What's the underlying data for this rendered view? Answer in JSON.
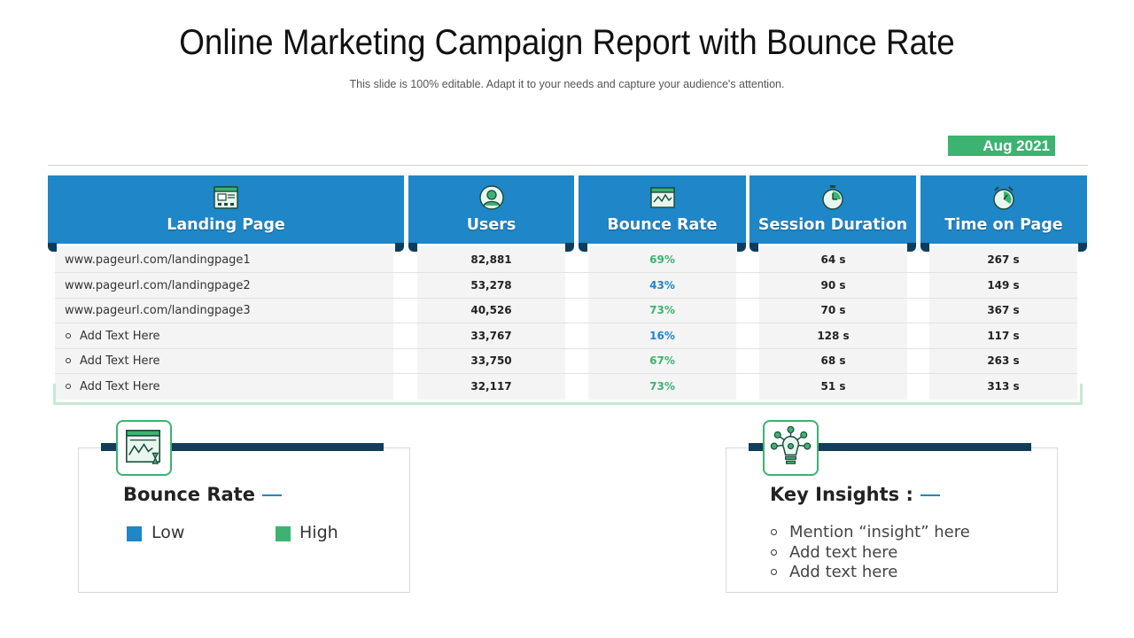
{
  "header": {
    "title": "Online Marketing Campaign Report with Bounce Rate",
    "subtitle": "This slide is 100% editable. Adapt it to your needs and capture your audience's attention.",
    "date_badge": "Aug 2021"
  },
  "table": {
    "columns": [
      {
        "label": "Landing Page",
        "icon": "web-page-icon"
      },
      {
        "label": "Users",
        "icon": "user-icon"
      },
      {
        "label": "Bounce Rate",
        "icon": "chart-window-icon"
      },
      {
        "label": "Session Duration",
        "icon": "clock-icon"
      },
      {
        "label": "Time on Page",
        "icon": "stopwatch-icon"
      }
    ],
    "rows": [
      {
        "page": "www.pageurl.com/landingpage1",
        "users": "82,881",
        "bounce": "69%",
        "bounce_level": "high",
        "session": "64 s",
        "time": "267 s",
        "bullet": false
      },
      {
        "page": "www.pageurl.com/landingpage2",
        "users": "53,278",
        "bounce": "43%",
        "bounce_level": "low",
        "session": "90 s",
        "time": "149 s",
        "bullet": false
      },
      {
        "page": "www.pageurl.com/landingpage3",
        "users": "40,526",
        "bounce": "73%",
        "bounce_level": "high",
        "session": "70 s",
        "time": "367 s",
        "bullet": false
      },
      {
        "page": "Add Text Here",
        "users": "33,767",
        "bounce": "16%",
        "bounce_level": "low",
        "session": "128 s",
        "time": "117 s",
        "bullet": true
      },
      {
        "page": "Add Text Here",
        "users": "33,750",
        "bounce": "67%",
        "bounce_level": "high",
        "session": "68 s",
        "time": "263 s",
        "bullet": true
      },
      {
        "page": "Add Text Here",
        "users": "32,117",
        "bounce": "73%",
        "bounce_level": "high",
        "session": "51 s",
        "time": "313 s",
        "bullet": true
      }
    ]
  },
  "bounce_card": {
    "title": "Bounce Rate",
    "icon": "chart-window-icon",
    "legend": [
      {
        "label": "Low",
        "color": "#1f86c7"
      },
      {
        "label": "High",
        "color": "#3cb371"
      }
    ]
  },
  "insights_card": {
    "title": "Key Insights :",
    "icon": "lightbulb-network-icon",
    "items": [
      "Mention “insight” here",
      "Add text here",
      "Add text here"
    ]
  },
  "colors": {
    "header_blue": "#1f86c7",
    "accent_green": "#3cb371",
    "dark_navy": "#123e5b",
    "low_text": "#1f86c7",
    "high_text": "#3cb371"
  }
}
